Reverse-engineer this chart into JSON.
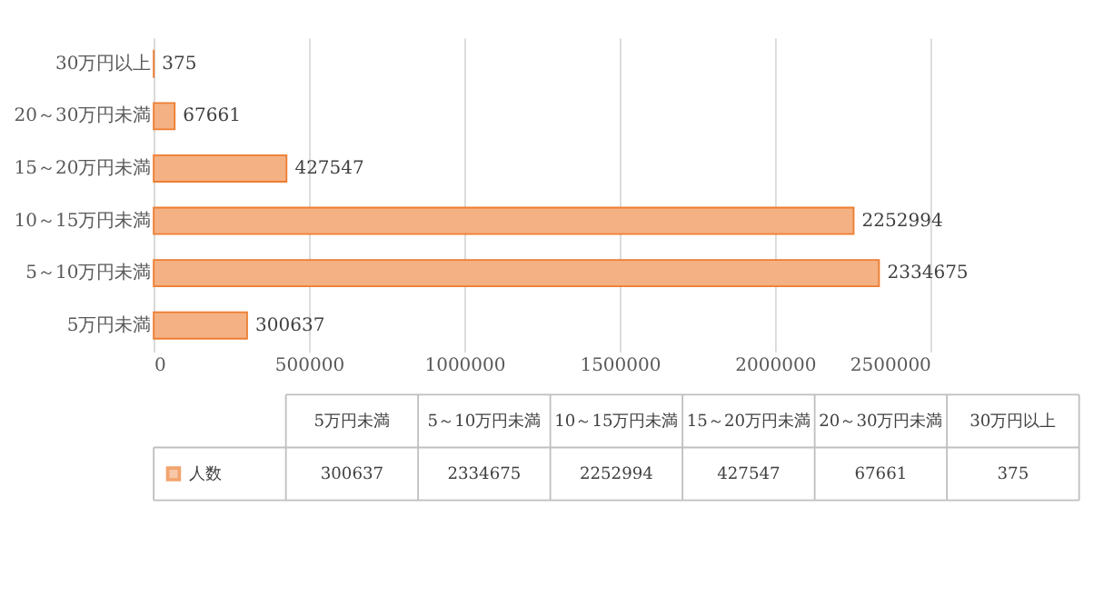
{
  "chart_data": {
    "type": "bar",
    "orientation": "horizontal",
    "categories": [
      "30万円以上",
      "20～30万円未満",
      "15～20万円未満",
      "10～15万円未満",
      "5～10万円未満",
      "5万円未満"
    ],
    "series": [
      {
        "name": "人数",
        "color": "#f4b183",
        "values": [
          375,
          67661,
          427547,
          2252994,
          2334675,
          300637
        ],
        "value_labels": [
          "375",
          "67661",
          "427547",
          "2252994",
          "2334675",
          "300637"
        ]
      }
    ],
    "xlim": [
      0,
      2500000
    ],
    "xticks": [
      0,
      500000,
      1000000,
      1500000,
      2000000,
      2500000
    ],
    "grid": "x",
    "legend": "bottom left",
    "annotations": [
      "300637",
      "2334675",
      "2252994",
      "427547",
      "67661",
      "375"
    ]
  }
}
